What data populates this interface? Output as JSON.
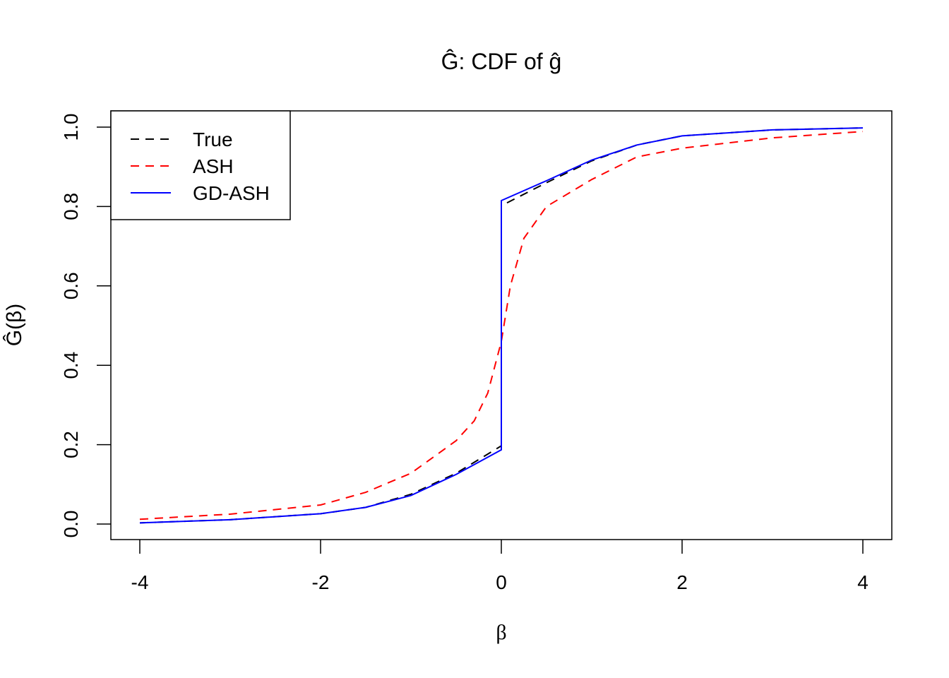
{
  "chart_data": {
    "type": "line",
    "title": "Ĝ: CDF of ĝ",
    "xlabel": "β",
    "ylabel": "Ĝ(β)",
    "xlim": [
      -4,
      4
    ],
    "ylim": [
      0,
      1
    ],
    "x_ticks": [
      "-4",
      "-2",
      "0",
      "2",
      "4"
    ],
    "y_ticks": [
      "0.0",
      "0.2",
      "0.4",
      "0.6",
      "0.8",
      "1.0"
    ],
    "grid": false,
    "legend_position": "top-left",
    "series": [
      {
        "name": "True",
        "color": "#000000",
        "dash": "dashed",
        "x": [
          -4,
          -3,
          -2,
          -1.5,
          -1,
          -0.5,
          0,
          0,
          0.5,
          1,
          1.5,
          2,
          3,
          4
        ],
        "y": [
          0.003,
          0.011,
          0.026,
          0.042,
          0.075,
          0.128,
          0.197,
          0.802,
          0.86,
          0.915,
          0.955,
          0.978,
          0.993,
          0.998
        ]
      },
      {
        "name": "ASH",
        "color": "#ff0000",
        "dash": "dashed",
        "x": [
          -4,
          -3,
          -2,
          -1.5,
          -1,
          -0.5,
          -0.3,
          -0.15,
          0,
          0.1,
          0.25,
          0.5,
          1,
          1.5,
          2,
          3,
          4
        ],
        "y": [
          0.012,
          0.025,
          0.048,
          0.08,
          0.128,
          0.21,
          0.26,
          0.33,
          0.46,
          0.6,
          0.72,
          0.8,
          0.868,
          0.925,
          0.947,
          0.973,
          0.989
        ]
      },
      {
        "name": "GD-ASH",
        "color": "#0000ff",
        "dash": "solid",
        "x": [
          -4,
          -3,
          -2,
          -1.5,
          -1,
          -0.5,
          0,
          0,
          0.5,
          1,
          1.5,
          2,
          3,
          4
        ],
        "y": [
          0.003,
          0.011,
          0.026,
          0.042,
          0.072,
          0.125,
          0.187,
          0.815,
          0.865,
          0.917,
          0.955,
          0.978,
          0.993,
          0.998
        ]
      }
    ]
  }
}
